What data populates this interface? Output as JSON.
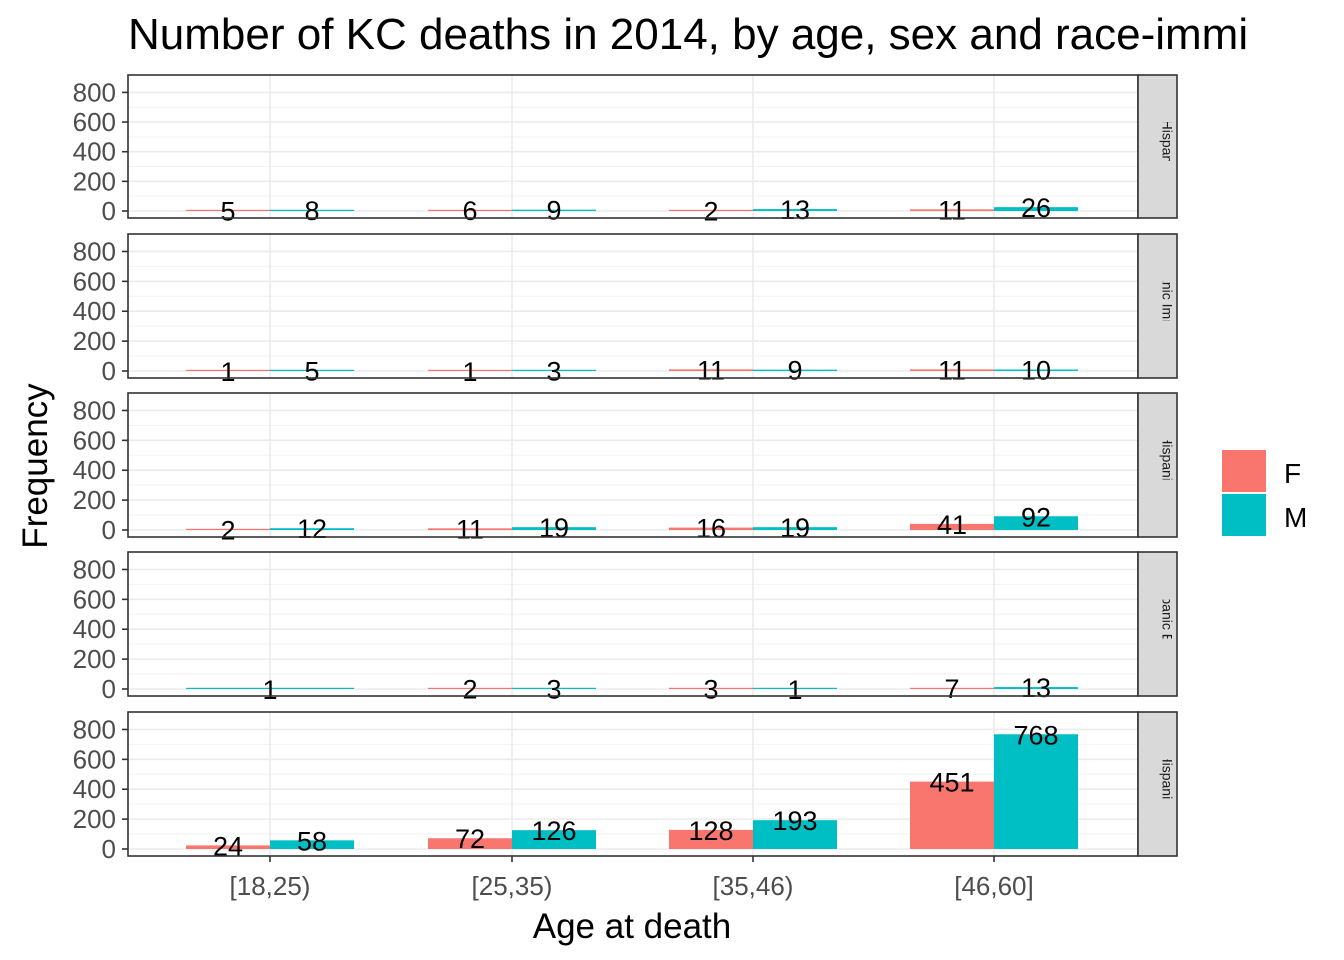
{
  "chart_data": {
    "type": "bar",
    "title": "Number of KC deaths in 2014, by age, sex and race-immi",
    "xlabel": "Age at death",
    "ylabel": "Frequency",
    "categories": [
      "[18,25)",
      "[25,35)",
      "[35,46)",
      "[46,60]"
    ],
    "yticks": [
      "0",
      "200",
      "400",
      "600",
      "800"
    ],
    "ylim": [
      0,
      850
    ],
    "grid": true,
    "legend": {
      "position": "right",
      "entries": [
        {
          "name": "F",
          "color": "#F8766D"
        },
        {
          "name": "M",
          "color": "#00BFC4"
        }
      ]
    },
    "facets": [
      {
        "label": "Hispanic",
        "bars": [
          {
            "category": "[18,25)",
            "sex": "F",
            "value": 5,
            "label": "5"
          },
          {
            "category": "[18,25)",
            "sex": "M",
            "value": 8,
            "label": "8"
          },
          {
            "category": "[25,35)",
            "sex": "F",
            "value": 6,
            "label": "6"
          },
          {
            "category": "[25,35)",
            "sex": "M",
            "value": 9,
            "label": "9"
          },
          {
            "category": "[35,46)",
            "sex": "F",
            "value": 2,
            "label": "2"
          },
          {
            "category": "[35,46)",
            "sex": "M",
            "value": 13,
            "label": "13"
          },
          {
            "category": "[46,60]",
            "sex": "F",
            "value": 11,
            "label": "11"
          },
          {
            "category": "[46,60]",
            "sex": "M",
            "value": 26,
            "label": "26"
          }
        ]
      },
      {
        "label": "Hispanic Immigrant",
        "bars": [
          {
            "category": "[18,25)",
            "sex": "F",
            "value": 1,
            "label": "1"
          },
          {
            "category": "[18,25)",
            "sex": "M",
            "value": 5,
            "label": "5"
          },
          {
            "category": "[25,35)",
            "sex": "F",
            "value": 1,
            "label": "1"
          },
          {
            "category": "[25,35)",
            "sex": "M",
            "value": 3,
            "label": "3"
          },
          {
            "category": "[35,46)",
            "sex": "F",
            "value": 11,
            "label": "11"
          },
          {
            "category": "[35,46)",
            "sex": "M",
            "value": 9,
            "label": "9"
          },
          {
            "category": "[46,60]",
            "sex": "F",
            "value": 11,
            "label": "11"
          },
          {
            "category": "[46,60]",
            "sex": "M",
            "value": 10,
            "label": "10"
          }
        ]
      },
      {
        "label": "Non-Hispanic Black",
        "bars": [
          {
            "category": "[18,25)",
            "sex": "F",
            "value": 2,
            "label": "2"
          },
          {
            "category": "[18,25)",
            "sex": "M",
            "value": 12,
            "label": "12"
          },
          {
            "category": "[25,35)",
            "sex": "F",
            "value": 11,
            "label": "11"
          },
          {
            "category": "[25,35)",
            "sex": "M",
            "value": 19,
            "label": "19"
          },
          {
            "category": "[35,46)",
            "sex": "F",
            "value": 16,
            "label": "16"
          },
          {
            "category": "[35,46)",
            "sex": "M",
            "value": 19,
            "label": "19"
          },
          {
            "category": "[46,60]",
            "sex": "F",
            "value": 41,
            "label": "41"
          },
          {
            "category": "[46,60]",
            "sex": "M",
            "value": 92,
            "label": "92"
          }
        ]
      },
      {
        "label": "Non-Hispanic Black Immi",
        "bars": [
          {
            "category": "[18,25)",
            "sex": "M",
            "value": 1,
            "label": "1",
            "full": true
          },
          {
            "category": "[25,35)",
            "sex": "F",
            "value": 2,
            "label": "2"
          },
          {
            "category": "[25,35)",
            "sex": "M",
            "value": 3,
            "label": "3"
          },
          {
            "category": "[35,46)",
            "sex": "F",
            "value": 3,
            "label": "3"
          },
          {
            "category": "[35,46)",
            "sex": "M",
            "value": 1,
            "label": "1"
          },
          {
            "category": "[46,60]",
            "sex": "F",
            "value": 7,
            "label": "7"
          },
          {
            "category": "[46,60]",
            "sex": "M",
            "value": 13,
            "label": "13"
          }
        ]
      },
      {
        "label": "Non-Hispanic White",
        "bars": [
          {
            "category": "[18,25)",
            "sex": "F",
            "value": 24,
            "label": "24"
          },
          {
            "category": "[18,25)",
            "sex": "M",
            "value": 58,
            "label": "58"
          },
          {
            "category": "[25,35)",
            "sex": "F",
            "value": 72,
            "label": "72"
          },
          {
            "category": "[25,35)",
            "sex": "M",
            "value": 126,
            "label": "126"
          },
          {
            "category": "[35,46)",
            "sex": "F",
            "value": 128,
            "label": "128"
          },
          {
            "category": "[35,46)",
            "sex": "M",
            "value": 193,
            "label": "193"
          },
          {
            "category": "[46,60]",
            "sex": "F",
            "value": 451,
            "label": "451"
          },
          {
            "category": "[46,60]",
            "sex": "M",
            "value": 768,
            "label": "768"
          }
        ]
      }
    ]
  }
}
